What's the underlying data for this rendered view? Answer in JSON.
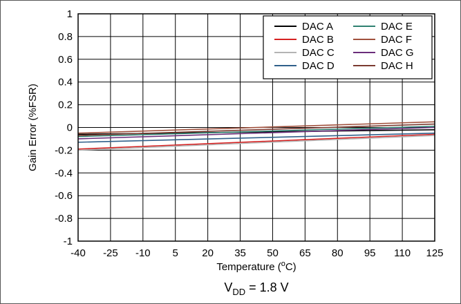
{
  "chart_data": {
    "type": "line",
    "xlabel_main": "Temperature (",
    "xlabel_sup": "o",
    "xlabel_end": "C)",
    "ylabel": "Gain Error (%FSR)",
    "caption_main": "V",
    "caption_sub": "DD",
    "caption_end": " = 1.8 V",
    "xlim": [
      -40,
      125
    ],
    "ylim": [
      -1,
      1
    ],
    "x_ticks": [
      -40,
      -25,
      -10,
      5,
      20,
      35,
      50,
      65,
      80,
      95,
      110,
      125
    ],
    "y_ticks": [
      -1,
      -0.8,
      -0.6,
      -0.4,
      -0.2,
      0,
      0.2,
      0.4,
      0.6,
      0.8,
      1
    ],
    "y_tick_labels": [
      "-1",
      "-0.8",
      "-0.6",
      "-0.4",
      "-0.2",
      "0",
      "0.2",
      "0.4",
      "0.6",
      "0.8",
      "1"
    ],
    "grid": true,
    "legend_position": "top-right",
    "series": [
      {
        "name": "DAC A",
        "color": "#000000",
        "x": [
          -40,
          125
        ],
        "y": [
          -0.06,
          -0.02
        ]
      },
      {
        "name": "DAC B",
        "color": "#d62020",
        "x": [
          -40,
          125
        ],
        "y": [
          -0.19,
          -0.06
        ]
      },
      {
        "name": "DAC C",
        "color": "#b4b4b4",
        "x": [
          -40,
          125
        ],
        "y": [
          -0.2,
          -0.07
        ]
      },
      {
        "name": "DAC D",
        "color": "#2f5f8a",
        "x": [
          -40,
          125
        ],
        "y": [
          -0.13,
          -0.05
        ]
      },
      {
        "name": "DAC E",
        "color": "#2e8070",
        "x": [
          -40,
          125
        ],
        "y": [
          -0.08,
          0.01
        ]
      },
      {
        "name": "DAC F",
        "color": "#a0503c",
        "x": [
          -40,
          125
        ],
        "y": [
          -0.05,
          0.05
        ]
      },
      {
        "name": "DAC G",
        "color": "#6a2d7a",
        "x": [
          -40,
          125
        ],
        "y": [
          -0.1,
          0.0
        ]
      },
      {
        "name": "DAC H",
        "color": "#7a3a30",
        "x": [
          -40,
          125
        ],
        "y": [
          -0.07,
          0.03
        ]
      }
    ],
    "legend_columns": [
      [
        "DAC A",
        "DAC B",
        "DAC C",
        "DAC D"
      ],
      [
        "DAC E",
        "DAC F",
        "DAC G",
        "DAC H"
      ]
    ]
  }
}
